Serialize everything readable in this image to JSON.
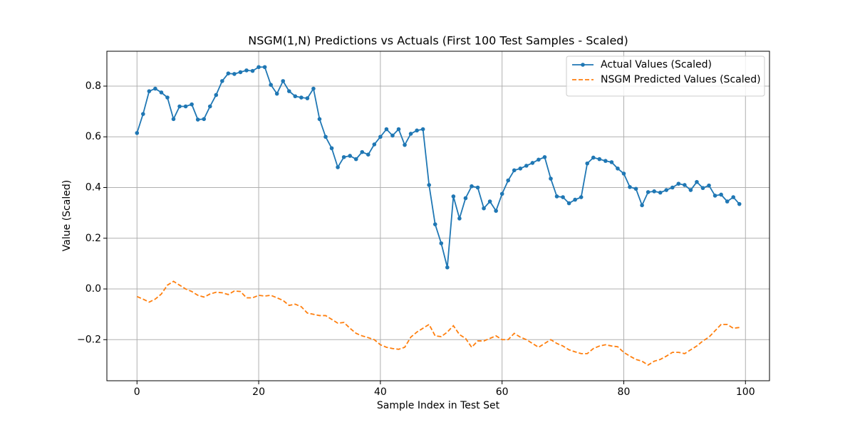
{
  "chart_data": {
    "type": "line",
    "title": "NSGM(1,N) Predictions vs Actuals (First 100 Test Samples - Scaled)",
    "x_label": "Sample Index in Test Set",
    "y_label": "Value (Scaled)",
    "x": [
      0,
      1,
      2,
      3,
      4,
      5,
      6,
      7,
      8,
      9,
      10,
      11,
      12,
      13,
      14,
      15,
      16,
      17,
      18,
      19,
      20,
      21,
      22,
      23,
      24,
      25,
      26,
      27,
      28,
      29,
      30,
      31,
      32,
      33,
      34,
      35,
      36,
      37,
      38,
      39,
      40,
      41,
      42,
      43,
      44,
      45,
      46,
      47,
      48,
      49,
      50,
      51,
      52,
      53,
      54,
      55,
      56,
      57,
      58,
      59,
      60,
      61,
      62,
      63,
      64,
      65,
      66,
      67,
      68,
      69,
      70,
      71,
      72,
      73,
      74,
      75,
      76,
      77,
      78,
      79,
      80,
      81,
      82,
      83,
      84,
      85,
      86,
      87,
      88,
      89,
      90,
      91,
      92,
      93,
      94,
      95,
      96,
      97,
      98,
      99
    ],
    "series": [
      {
        "name": "Actual Values (Scaled)",
        "color": "#1f77b4",
        "linestyle": "solid",
        "marker": "o",
        "values": [
          0.615,
          0.69,
          0.78,
          0.79,
          0.775,
          0.755,
          0.67,
          0.72,
          0.72,
          0.728,
          0.668,
          0.67,
          0.72,
          0.765,
          0.82,
          0.85,
          0.848,
          0.855,
          0.862,
          0.86,
          0.875,
          0.875,
          0.805,
          0.77,
          0.82,
          0.78,
          0.76,
          0.755,
          0.752,
          0.79,
          0.67,
          0.6,
          0.555,
          0.48,
          0.52,
          0.525,
          0.512,
          0.54,
          0.53,
          0.57,
          0.6,
          0.63,
          0.605,
          0.63,
          0.568,
          0.612,
          0.625,
          0.63,
          0.41,
          0.255,
          0.18,
          0.085,
          0.365,
          0.278,
          0.358,
          0.405,
          0.4,
          0.318,
          0.345,
          0.308,
          0.375,
          0.428,
          0.468,
          0.475,
          0.486,
          0.497,
          0.51,
          0.52,
          0.435,
          0.365,
          0.362,
          0.338,
          0.352,
          0.362,
          0.495,
          0.518,
          0.512,
          0.505,
          0.5,
          0.475,
          0.455,
          0.402,
          0.395,
          0.33,
          0.382,
          0.385,
          0.38,
          0.39,
          0.4,
          0.415,
          0.41,
          0.39,
          0.422,
          0.398,
          0.408,
          0.368,
          0.372,
          0.345,
          0.362,
          0.335
        ]
      },
      {
        "name": "NSGM Predicted Values (Scaled)",
        "color": "#ff7f0e",
        "linestyle": "dashed",
        "marker": "none",
        "values": [
          -0.03,
          -0.04,
          -0.052,
          -0.04,
          -0.02,
          0.015,
          0.03,
          0.015,
          0.0,
          -0.01,
          -0.025,
          -0.032,
          -0.02,
          -0.013,
          -0.015,
          -0.022,
          -0.008,
          -0.01,
          -0.035,
          -0.035,
          -0.025,
          -0.028,
          -0.025,
          -0.035,
          -0.045,
          -0.065,
          -0.06,
          -0.07,
          -0.095,
          -0.1,
          -0.105,
          -0.105,
          -0.12,
          -0.135,
          -0.132,
          -0.155,
          -0.175,
          -0.185,
          -0.192,
          -0.2,
          -0.22,
          -0.23,
          -0.235,
          -0.238,
          -0.23,
          -0.19,
          -0.17,
          -0.155,
          -0.14,
          -0.185,
          -0.188,
          -0.17,
          -0.145,
          -0.18,
          -0.195,
          -0.23,
          -0.205,
          -0.205,
          -0.195,
          -0.185,
          -0.2,
          -0.2,
          -0.175,
          -0.19,
          -0.2,
          -0.215,
          -0.23,
          -0.215,
          -0.2,
          -0.215,
          -0.225,
          -0.24,
          -0.248,
          -0.255,
          -0.255,
          -0.235,
          -0.225,
          -0.22,
          -0.225,
          -0.228,
          -0.25,
          -0.265,
          -0.278,
          -0.285,
          -0.3,
          -0.285,
          -0.278,
          -0.265,
          -0.25,
          -0.25,
          -0.255,
          -0.24,
          -0.225,
          -0.205,
          -0.19,
          -0.165,
          -0.14,
          -0.14,
          -0.155,
          -0.152
        ]
      }
    ],
    "xlim": [
      -4.95,
      103.95
    ],
    "ylim": [
      -0.362,
      0.9375
    ],
    "xticks": [
      0,
      20,
      40,
      60,
      80,
      100
    ],
    "yticks": [
      {
        "value": -0.2,
        "label": "−0.2"
      },
      {
        "value": 0,
        "label": "0.0"
      },
      0.2,
      0.4,
      0.6,
      0.8
    ],
    "grid": true,
    "legend": "upper right"
  }
}
